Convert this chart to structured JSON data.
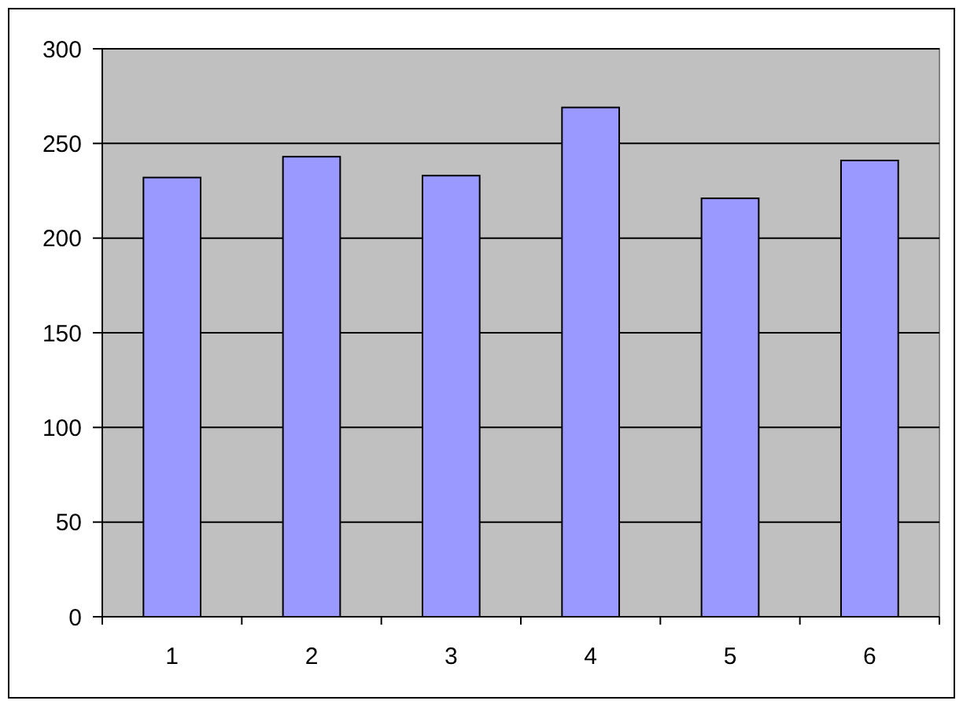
{
  "chart_data": {
    "type": "bar",
    "categories": [
      "1",
      "2",
      "3",
      "4",
      "5",
      "6"
    ],
    "values": [
      232,
      243,
      233,
      269,
      221,
      241
    ],
    "color": "#9999ff",
    "ylim": [
      0,
      300
    ],
    "yticks": [
      0,
      50,
      100,
      150,
      200,
      250,
      300
    ],
    "grid": "y"
  }
}
